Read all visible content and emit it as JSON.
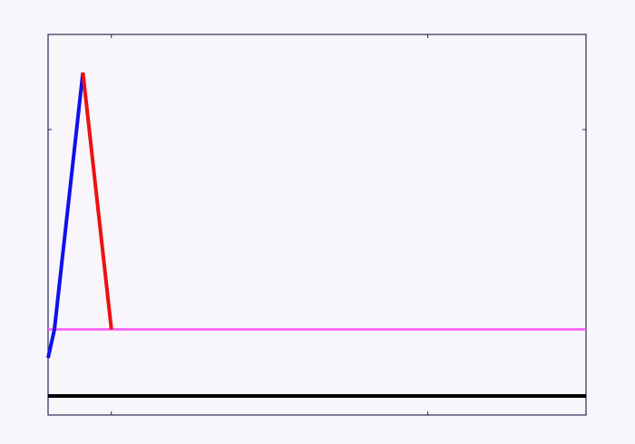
{
  "chart_data": {
    "type": "line",
    "title": "",
    "xlabel": "",
    "ylabel": "",
    "xlim": [
      0,
      17
    ],
    "ylim": [
      -0.5,
      3.5
    ],
    "grid": false,
    "legend": "none",
    "x_ticks": [
      2,
      12
    ],
    "y_ticks": [
      2.5
    ],
    "series": [
      {
        "color": "#1010ee",
        "points": [
          [
            0,
            0.1
          ],
          [
            0.2,
            0.4
          ],
          [
            1.1,
            3.1
          ]
        ]
      },
      {
        "color": "#ee1010",
        "points": [
          [
            1.1,
            3.1
          ],
          [
            2.0,
            0.4
          ]
        ]
      }
    ],
    "reference_lines": [
      {
        "orientation": "horizontal",
        "y": 0.4,
        "color": "#ff55ff"
      },
      {
        "orientation": "horizontal",
        "y": -0.3,
        "color": "#000000"
      }
    ]
  }
}
